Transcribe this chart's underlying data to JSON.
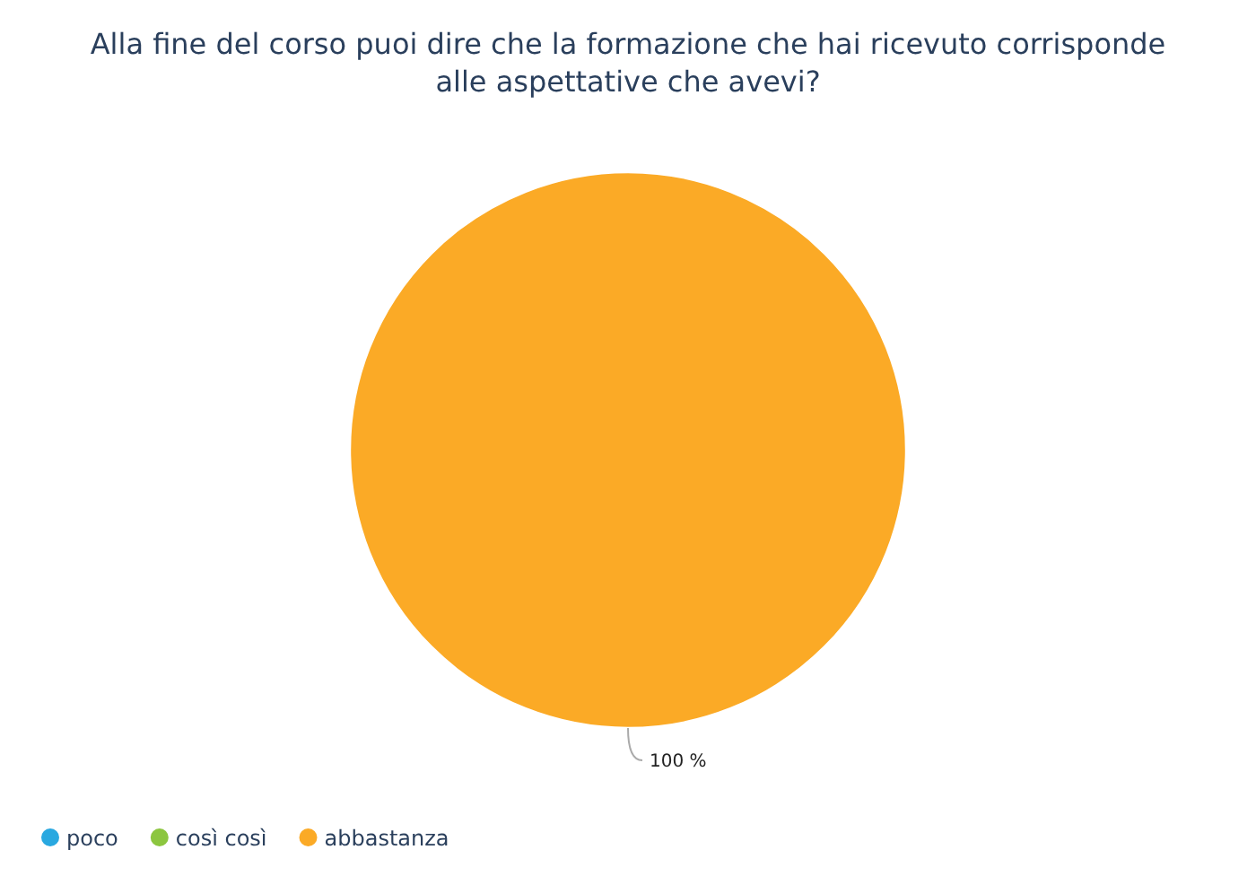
{
  "chart_data": {
    "type": "pie",
    "title": "Alla fine del corso puoi dire che la formazione che hai ricevuto corrisponde alle aspettative che avevi?",
    "categories": [
      "poco",
      "così così",
      "abbastanza"
    ],
    "values": [
      0,
      0,
      100
    ],
    "colors": [
      "#29a8e0",
      "#8cc63f",
      "#fbaa26"
    ],
    "value_labels": [
      null,
      null,
      "100 %"
    ],
    "legend": "bottom left"
  }
}
